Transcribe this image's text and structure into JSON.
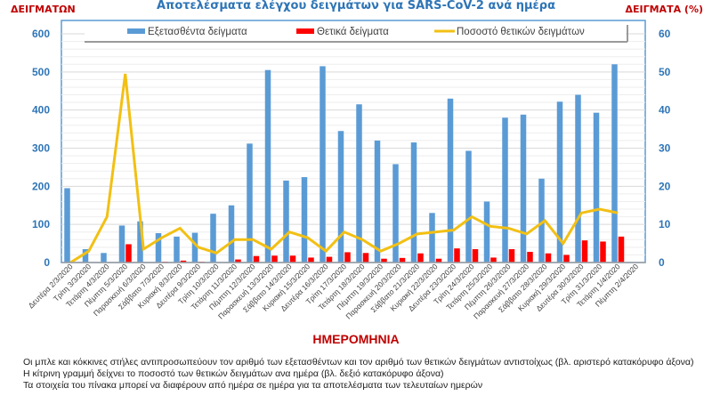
{
  "chart_data": {
    "type": "bar",
    "title": "Αποτελέσματα ελέγχου δειγμάτων για SARS-CoV-2 ανά ημέρα",
    "left_axis_title": "ΔΕΙΓΜΑΤΩΝ",
    "right_axis_title": "ΔΕΙΓΜΑΤΑ (%)",
    "xlabel": "ΗΜΕΡΟΜΗΝΙΑ",
    "ylim": [
      0,
      600
    ],
    "y2lim": [
      0,
      60
    ],
    "yticks": [
      "0",
      "100",
      "200",
      "300",
      "400",
      "500",
      "600"
    ],
    "y2ticks": [
      "0",
      "10",
      "20",
      "30",
      "40",
      "50",
      "60"
    ],
    "grid": true,
    "legend_position": "top",
    "categories": [
      "Δευτέρα 2/3/2020",
      "Τρίτη 3/3/2020",
      "Τετάρτη 4/3/2020",
      "Πέμπτη 5/3/2020",
      "Παρασκευή 6/3/2020",
      "Σάββατο 7/3/2020",
      "Κυριακή 8/3/2020",
      "Δευτέρα 9/3/2020",
      "Τρίτη 10/3/2020",
      "Τετάρτη 11/3/2020",
      "Πέμπτη 12/3/2020",
      "Παρασκευή 13/3/2020",
      "Σάββατο 14/3/2020",
      "Κυριακή 15/3/2020",
      "Δευτέρα 16/3/2020",
      "Τρίτη 17/3/2020",
      "Τετάρτη 18/3/2020",
      "Πέμπτη 19/3/2020",
      "Παρασκευή 20/3/2020",
      "Σάββατο 21/3/2020",
      "Κυριακή 22/3/2020",
      "Δευτέρα 23/3/2020",
      "Τρίτη 24/3/2020",
      "Τετάρτη 25/3/2020",
      "Πέμπτη 26/3/2020",
      "Παρασκευή 27/3/2020",
      "Σάββατο 28/3/2020",
      "Κυριακή 29/3/2020",
      "Δευτέρα 30/3/2020",
      "Τρίτη 31/3/2020",
      "Τετάρτη 1/4/2020",
      "Πέμπτη 2/4/2020"
    ],
    "series": [
      {
        "name": "Εξετασθέντα δείγματα",
        "type": "bar",
        "axis": "left",
        "color": "#5b9bd5",
        "values": [
          195,
          35,
          25,
          97,
          108,
          77,
          68,
          78,
          128,
          150,
          312,
          505,
          215,
          224,
          515,
          345,
          415,
          320,
          258,
          315,
          130,
          430,
          293,
          160,
          380,
          388,
          220,
          422,
          440,
          393,
          520,
          0
        ]
      },
      {
        "name": "Θετικά δείγματα",
        "type": "bar",
        "axis": "left",
        "color": "#ff0000",
        "values": [
          0,
          0,
          0,
          48,
          1,
          2,
          5,
          2,
          1,
          8,
          17,
          18,
          18,
          13,
          15,
          27,
          25,
          10,
          12,
          24,
          10,
          37,
          35,
          13,
          35,
          28,
          24,
          20,
          58,
          55,
          68,
          0
        ]
      },
      {
        "name": "Ποσοστό θετικών δειγμάτων",
        "type": "line",
        "axis": "right",
        "color": "#f2c014",
        "values": [
          0,
          3,
          12,
          49.5,
          3.5,
          6.5,
          9,
          4,
          2.5,
          6,
          6,
          3.5,
          8,
          6.5,
          3,
          8,
          6,
          3,
          5,
          7.5,
          8,
          8.5,
          12,
          9.5,
          9,
          7.5,
          11,
          5,
          13,
          14,
          13,
          null
        ]
      }
    ]
  },
  "notes": [
    "Οι μπλε και κόκκινες στήλες αντιπροσωπεύουν τον αριθμό των εξετασθέντων και τον αριθμό των θετικών δειγμάτων αντιστοίχως (βλ. αριστερό κατακόρυφο άξονα)",
    "Η κίτρινη γραμμή δείχνει το ποσοστό  των θετικών δειγμάτων ανα ημέρα (βλ. δεξιό κατακόρυφο άξονα)",
    "Τα στοιχεία του πίνακα μπορεί να διαφέρουν από ημέρα σε ημέρα για τα αποτελέσματα των τελευταίων ημερών"
  ]
}
